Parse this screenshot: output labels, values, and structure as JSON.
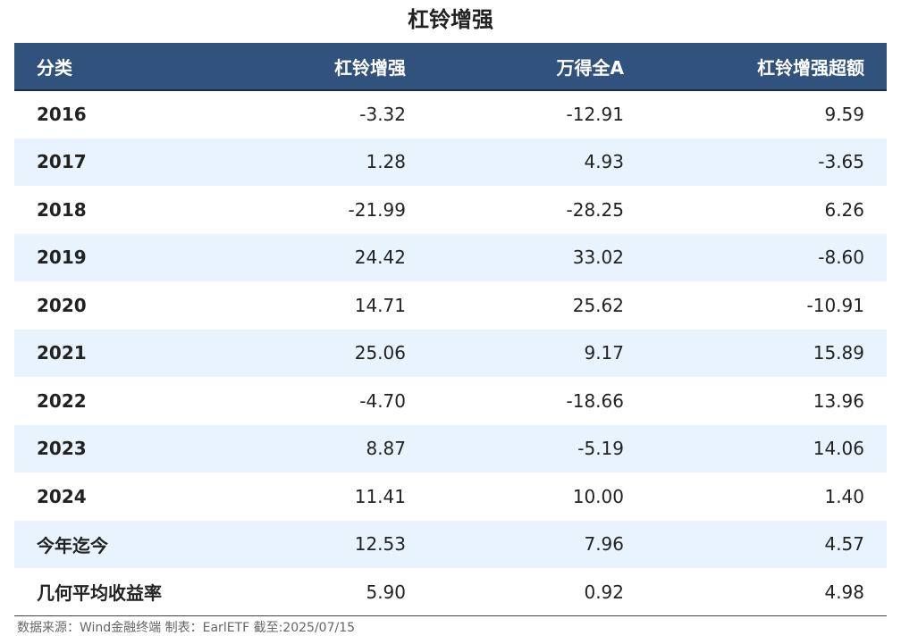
{
  "chart_data": {
    "type": "table",
    "title": "杠铃增强",
    "columns": [
      "分类",
      "杠铃增强",
      "万得全A",
      "杠铃增强超额"
    ],
    "rows": [
      [
        "2016",
        "-3.32",
        "-12.91",
        "9.59"
      ],
      [
        "2017",
        "1.28",
        "4.93",
        "-3.65"
      ],
      [
        "2018",
        "-21.99",
        "-28.25",
        "6.26"
      ],
      [
        "2019",
        "24.42",
        "33.02",
        "-8.60"
      ],
      [
        "2020",
        "14.71",
        "25.62",
        "-10.91"
      ],
      [
        "2021",
        "25.06",
        "9.17",
        "15.89"
      ],
      [
        "2022",
        "-4.70",
        "-18.66",
        "13.96"
      ],
      [
        "2023",
        "8.87",
        "-5.19",
        "14.06"
      ],
      [
        "2024",
        "11.41",
        "10.00",
        "1.40"
      ],
      [
        "今年迄今",
        "12.53",
        "7.96",
        "4.57"
      ],
      [
        "几何平均收益率",
        "5.90",
        "0.92",
        "4.98"
      ]
    ],
    "source": "数据来源：Wind金融终端 制表：EarlETF 截至:2025/07/15"
  },
  "colors": {
    "header_background": "#31527c",
    "header_text": "#ffffff",
    "stripe_background": "#e8f3fd"
  }
}
